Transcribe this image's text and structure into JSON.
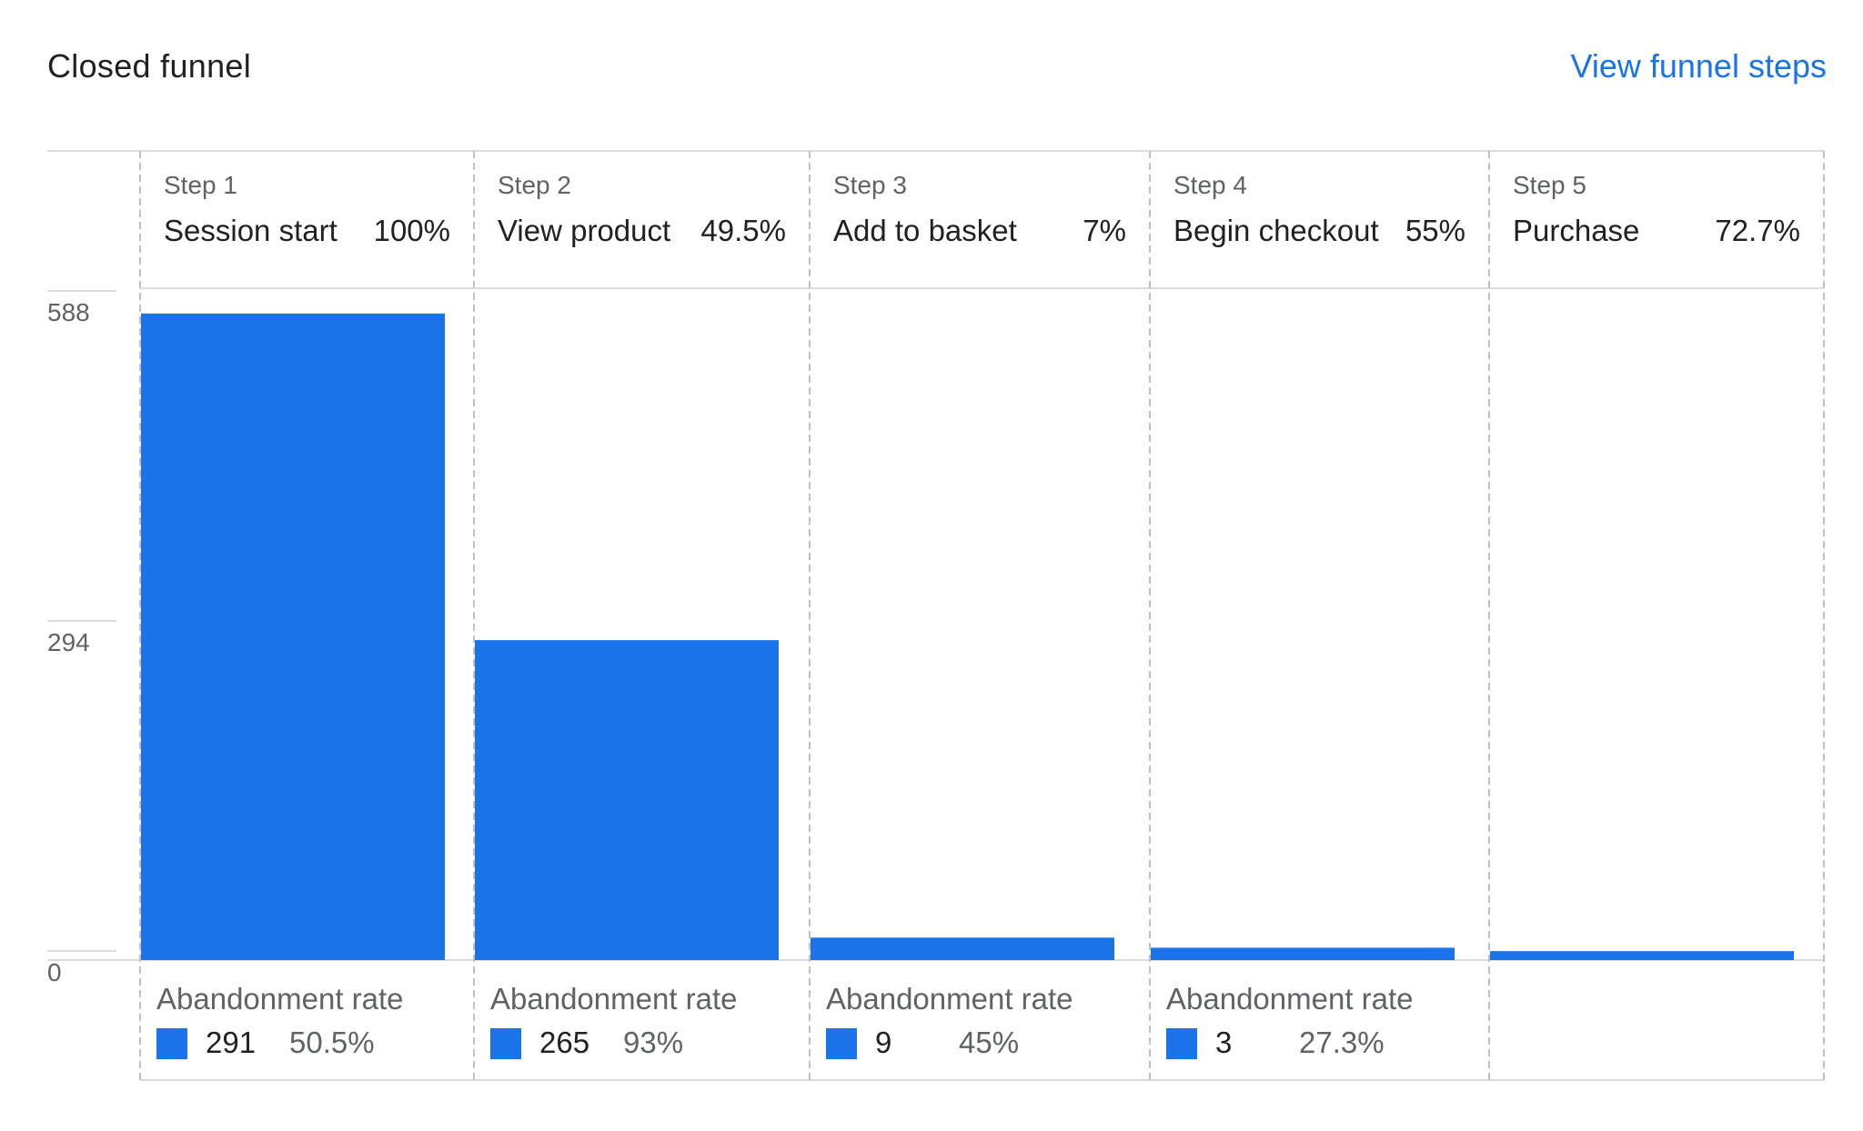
{
  "title": "Closed funnel",
  "view_link": "View funnel steps",
  "chart_data": {
    "type": "bar",
    "categories": [
      "Step 1",
      "Step 2",
      "Step 3",
      "Step 4",
      "Step 5"
    ],
    "step_names": [
      "Session start",
      "View product",
      "Add to basket",
      "Begin checkout",
      "Purchase"
    ],
    "completion_rates": [
      "100%",
      "49.5%",
      "7%",
      "55%",
      "72.7%"
    ],
    "values": [
      576,
      285,
      20,
      11,
      8
    ],
    "y_ticks": [
      "588",
      "294",
      "0"
    ],
    "ylim": [
      0,
      588
    ],
    "abandonment_label": "Abandonment rate",
    "abandonment": [
      {
        "count": "291",
        "rate": "50.5%"
      },
      {
        "count": "265",
        "rate": "93%"
      },
      {
        "count": "9",
        "rate": "45%"
      },
      {
        "count": "3",
        "rate": "27.3%"
      }
    ],
    "bar_color": "#1a73e8",
    "grid": true
  }
}
